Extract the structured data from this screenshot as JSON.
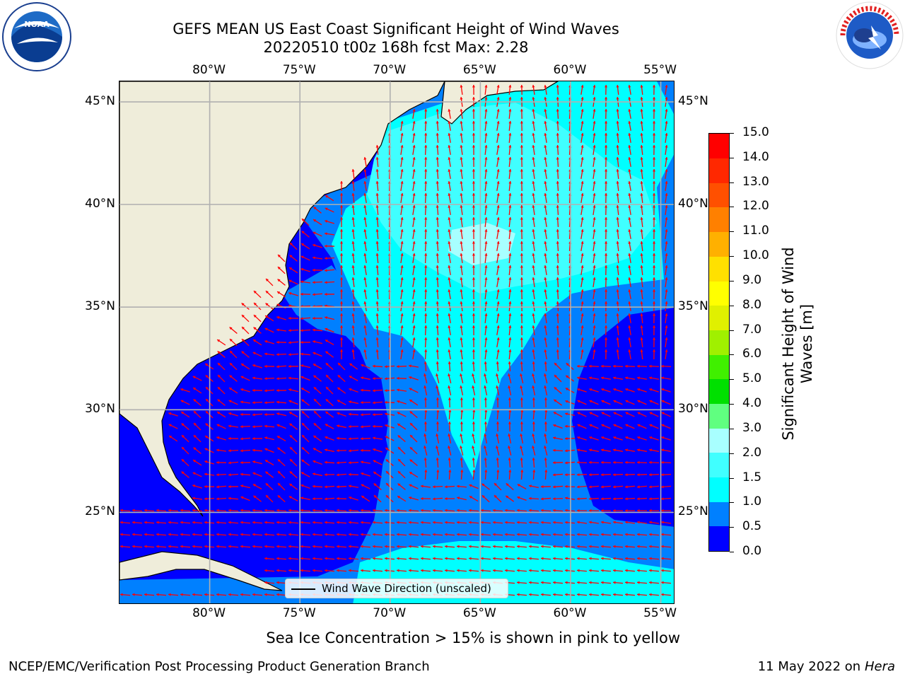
{
  "header": {
    "title_line1": "GEFS MEAN US East Coast Significant Height of Wind Waves",
    "title_line2": "20220510 t00z 168h fcst   Max: 2.28"
  },
  "logos": {
    "left": "noaa-logo",
    "right": "nws-logo"
  },
  "map": {
    "lon_labels": [
      "80°W",
      "75°W",
      "70°W",
      "65°W",
      "60°W",
      "55°W"
    ],
    "lat_labels": [
      "45°N",
      "40°N",
      "35°N",
      "30°N",
      "25°N"
    ],
    "lon_values": [
      -80,
      -75,
      -70,
      -65,
      -60,
      -55
    ],
    "lat_values": [
      45,
      40,
      35,
      30,
      25
    ],
    "extent": {
      "lon_min": -85,
      "lon_max": -54.2,
      "lat_min": 20.5,
      "lat_max": 46
    },
    "land_color": "#efedda",
    "arrow_color": "#ff0000",
    "grid_color": "#b0b0b0"
  },
  "colorbar": {
    "label": "Significant Height of Wind Waves [m]",
    "ticks": [
      "0.0",
      "0.5",
      "1.0",
      "1.5",
      "2.0",
      "3.0",
      "4.0",
      "5.0",
      "6.0",
      "7.0",
      "8.0",
      "9.0",
      "10.0",
      "11.0",
      "12.0",
      "13.0",
      "14.0",
      "15.0"
    ],
    "colors": [
      "#0000ff",
      "#0080ff",
      "#00ffff",
      "#40ffff",
      "#a8ffff",
      "#60ff80",
      "#00e000",
      "#40f000",
      "#a0f000",
      "#e0f000",
      "#ffff00",
      "#ffe000",
      "#ffb000",
      "#ff8000",
      "#ff5000",
      "#ff2800",
      "#ff0000"
    ]
  },
  "legend": {
    "text": "Wind Wave Direction (unscaled)"
  },
  "notes": {
    "sea_ice": "Sea Ice Concentration > 15% is shown in pink to yellow"
  },
  "footer": {
    "left": "NCEP/EMC/Verification Post Processing Product Generation Branch",
    "date": "11 May 2022 on",
    "machine": "Hera"
  }
}
